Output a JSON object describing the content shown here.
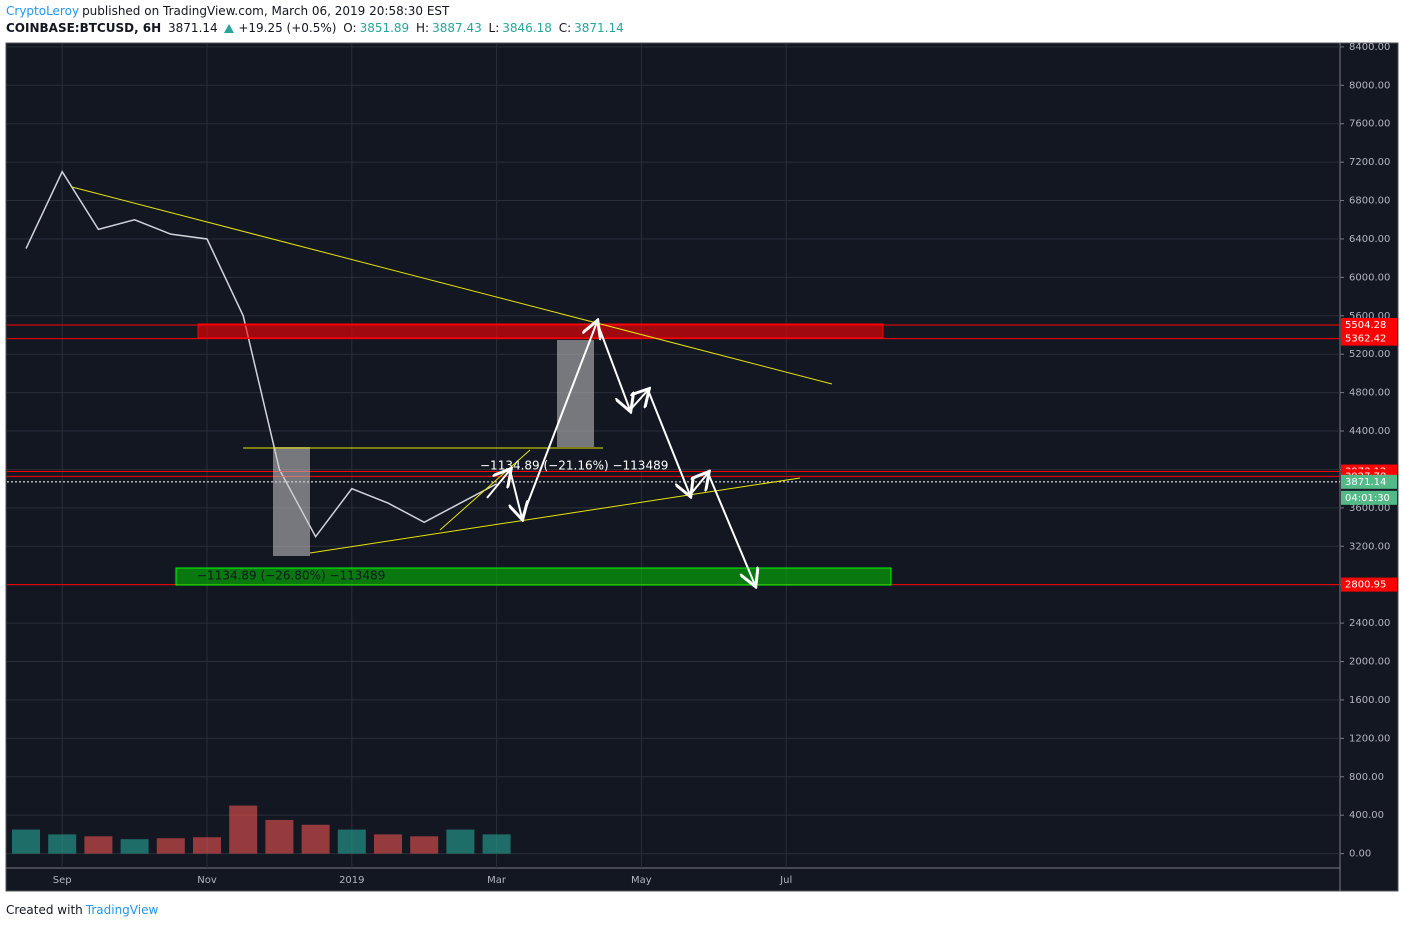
{
  "header": {
    "author": "CryptoLeroy",
    "published": "published on TradingView.com, March 06, 2019 20:58:30 EST",
    "symbol": "COINBASE:BTCUSD, 6H",
    "last": "3871.14",
    "change": "+19.25 (+0.5%)",
    "o_label": "O:",
    "o": "3851.89",
    "h_label": "H:",
    "h": "3887.43",
    "l_label": "L:",
    "l": "3846.18",
    "c_label": "C:",
    "c": "3871.14"
  },
  "footer": {
    "created": "Created with",
    "brand": "TradingView"
  },
  "chart_data": {
    "type": "line",
    "categories": [
      null,
      "Sep",
      null,
      null,
      null,
      "Nov",
      null,
      null,
      null,
      "2019",
      null,
      null,
      null,
      "Mar",
      null,
      null,
      null,
      "May",
      null,
      null,
      null,
      "Jul"
    ],
    "series": [
      {
        "color": "#d1d4dc",
        "values": [
          6300,
          7100,
          6500,
          6600,
          6450,
          6400,
          5600,
          4000,
          3300,
          3800,
          3650,
          3450,
          3650,
          3850,
          null,
          null,
          null,
          null,
          null,
          null,
          null,
          null
        ]
      }
    ],
    "volume": {
      "up_color": "#26a69a",
      "down_color": "#ef5350",
      "values": [
        250,
        200,
        180,
        150,
        160,
        170,
        500,
        350,
        300,
        250,
        200,
        180,
        250,
        200,
        null,
        null,
        null,
        null,
        null,
        null,
        null,
        null
      ]
    },
    "ylim": [
      -150,
      8430
    ],
    "yticks": [
      {
        "value": 0,
        "label": "0.00"
      },
      {
        "value": 400,
        "label": "400.00"
      },
      {
        "value": 800,
        "label": "800.00"
      },
      {
        "value": 1200,
        "label": "1200.00"
      },
      {
        "value": 1600,
        "label": "1600.00"
      },
      {
        "value": 2000,
        "label": "2000.00"
      },
      {
        "value": 2400,
        "label": "2400.00"
      },
      {
        "value": 2800,
        "label": "2800.00"
      },
      {
        "value": 3200,
        "label": "3200.00"
      },
      {
        "value": 3600,
        "label": "3600.00"
      },
      {
        "value": 4000,
        "label": "4000.00"
      },
      {
        "value": 4400,
        "label": "4400.00"
      },
      {
        "value": 4800,
        "label": "4800.00"
      },
      {
        "value": 5200,
        "label": "5200.00"
      },
      {
        "value": 5600,
        "label": "5600.00"
      },
      {
        "value": 6000,
        "label": "6000.00"
      },
      {
        "value": 6400,
        "label": "6400.00"
      },
      {
        "value": 6800,
        "label": "6800.00"
      },
      {
        "value": 7200,
        "label": "7200.00"
      },
      {
        "value": 7600,
        "label": "7600.00"
      },
      {
        "value": 8000,
        "label": "8000.00"
      },
      {
        "value": 8400,
        "label": "8400.00"
      }
    ],
    "grid": true,
    "levels": [
      {
        "value": 5504.28,
        "color": "#ff0000"
      },
      {
        "value": 5362.42,
        "color": "#ff0000"
      },
      {
        "value": 3978.12,
        "color": "#ff0000"
      },
      {
        "value": 3927.78,
        "color": "#ff0000"
      },
      {
        "value": 3871.14,
        "color": "#53b987"
      },
      {
        "value": 2800.95,
        "color": "#ff0000"
      }
    ],
    "countdown": "04:01:30",
    "annotations": [
      "−1134.89 (−26.80%) −113489",
      "−1134.89 (−21.16%) −113489"
    ]
  }
}
